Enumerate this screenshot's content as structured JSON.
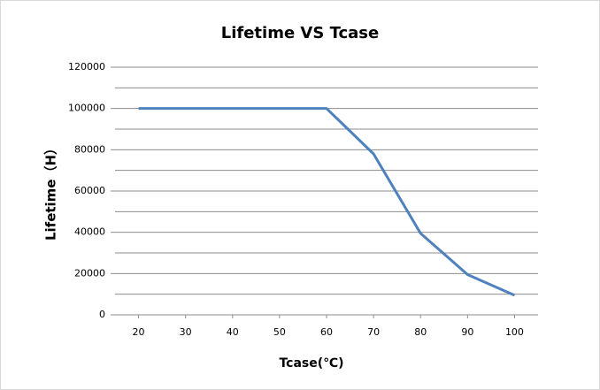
{
  "chart_data": {
    "type": "line",
    "title": "Lifetime VS Tcase",
    "x_label": "Tcase(℃)",
    "y_label": "Lifetime（H）",
    "x": [
      20,
      30,
      40,
      50,
      60,
      70,
      80,
      90,
      100
    ],
    "series": [
      {
        "name": "Lifetime",
        "color": "#4f81bd",
        "values": [
          100000,
          100000,
          100000,
          100000,
          100000,
          78000,
          39500,
          19500,
          9500
        ]
      }
    ],
    "xlim": [
      15,
      105
    ],
    "xticks": [
      20,
      30,
      40,
      50,
      60,
      70,
      80,
      90,
      100
    ],
    "ylim": [
      0,
      120000
    ],
    "yticks": [
      0,
      20000,
      40000,
      60000,
      80000,
      100000,
      120000
    ],
    "grid_lines": [
      10000,
      20000,
      30000,
      40000,
      50000,
      60000,
      70000,
      80000,
      90000,
      100000,
      110000,
      120000
    ],
    "grid": true
  }
}
